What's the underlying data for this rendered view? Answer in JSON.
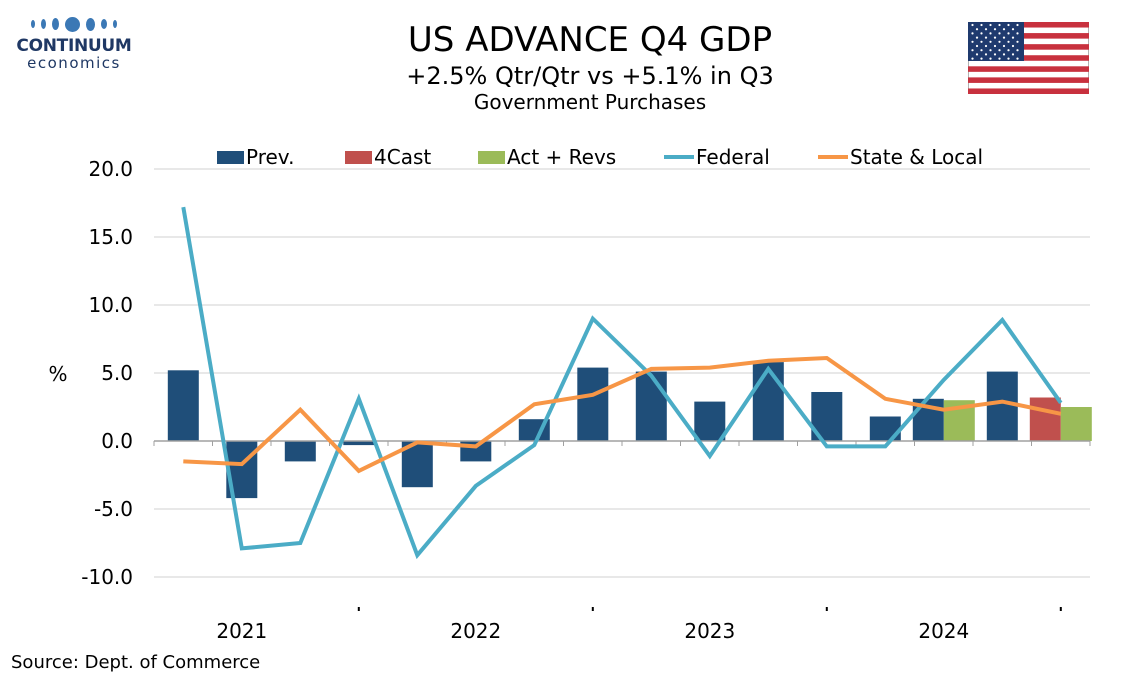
{
  "brand": {
    "name": "CONTINUUM",
    "sub": "economics"
  },
  "title": "US ADVANCE Q4  GDP",
  "subtitle": "+2.5% Qtr/Qtr vs +5.1% in Q3",
  "subtitle2": "Government Purchases",
  "source": "Source: Dept. of Commerce",
  "flag": "us-flag",
  "chart_data": {
    "type": "bar",
    "ylabel": "%",
    "ylim": [
      -10,
      20
    ],
    "yticks": [
      20.0,
      15.0,
      10.0,
      5.0,
      0.0,
      -5.0,
      -10.0
    ],
    "year_labels": [
      "2021",
      "2022",
      "2023",
      "2024"
    ],
    "quarters": [
      "2021Q1",
      "2021Q2",
      "2021Q3",
      "2021Q4",
      "2022Q1",
      "2022Q2",
      "2022Q3",
      "2022Q4",
      "2023Q1",
      "2023Q2",
      "2023Q3",
      "2023Q4",
      "2024Q1",
      "2024Q2",
      "2024Q3",
      "2024Q4"
    ],
    "grid": true,
    "legend_position": "top",
    "legend": [
      "Prev.",
      "4Cast",
      "Act + Revs",
      "Federal",
      "State & Local"
    ],
    "bars": [
      {
        "name": "Prev.",
        "color": "#1f4e79",
        "values": [
          5.2,
          -4.2,
          -1.5,
          -0.3,
          -3.4,
          -1.5,
          1.6,
          5.4,
          5.1,
          2.9,
          5.8,
          3.6,
          1.8,
          3.1,
          5.1,
          null
        ]
      },
      {
        "name": "4Cast",
        "color": "#c0504d",
        "values": [
          null,
          null,
          null,
          null,
          null,
          null,
          null,
          null,
          null,
          null,
          null,
          null,
          null,
          null,
          null,
          3.2
        ]
      },
      {
        "name": "Act + Revs",
        "color": "#9bbb59",
        "values": [
          null,
          null,
          null,
          null,
          null,
          null,
          null,
          null,
          null,
          null,
          null,
          null,
          null,
          3.0,
          null,
          2.5
        ]
      }
    ],
    "lines": [
      {
        "name": "Federal",
        "color": "#4bacc6",
        "values": [
          17.2,
          -7.9,
          -7.5,
          3.1,
          -8.4,
          -3.3,
          -0.3,
          9.0,
          4.8,
          -1.1,
          5.3,
          -0.4,
          -0.4,
          4.5,
          8.9,
          2.8
        ]
      },
      {
        "name": "State & Local",
        "color": "#f79646",
        "values": [
          -1.5,
          -1.7,
          2.3,
          -2.2,
          -0.1,
          -0.4,
          2.7,
          3.4,
          5.3,
          5.4,
          5.9,
          6.1,
          3.1,
          2.3,
          2.9,
          2.0
        ]
      }
    ]
  }
}
